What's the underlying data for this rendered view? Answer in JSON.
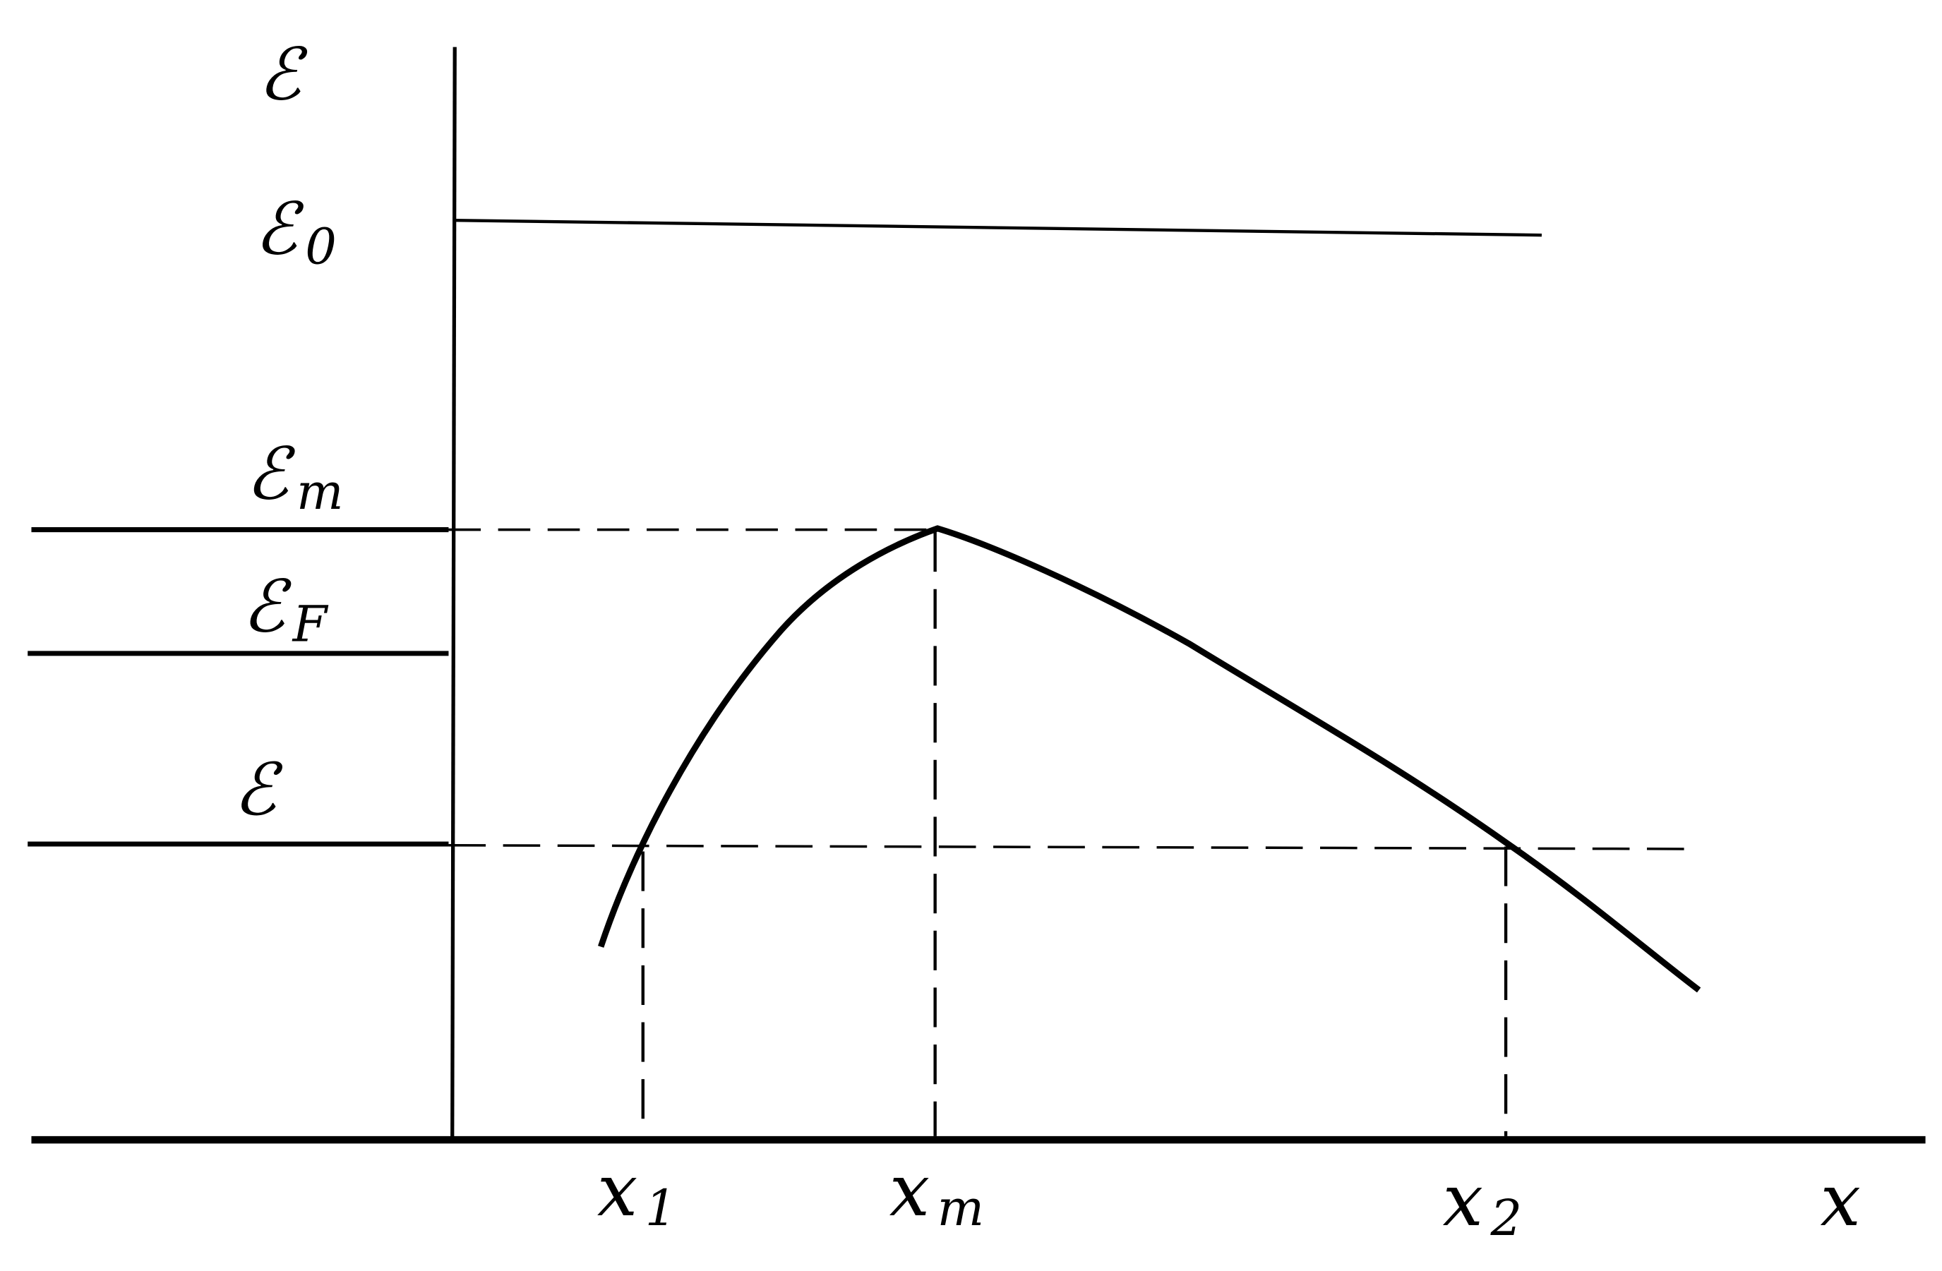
{
  "axis_labels": {
    "y": "ℰ",
    "x": "x"
  },
  "energy_levels": [
    {
      "base": "ℰ",
      "sub": "0"
    },
    {
      "base": "ℰ",
      "sub": "m"
    },
    {
      "base": "ℰ",
      "sub": "F"
    },
    {
      "base": "ℰ"
    }
  ],
  "x_marks": [
    {
      "base": "x",
      "sub": "1"
    },
    {
      "base": "x",
      "sub": "m"
    },
    {
      "base": "x",
      "sub": "2"
    }
  ]
}
